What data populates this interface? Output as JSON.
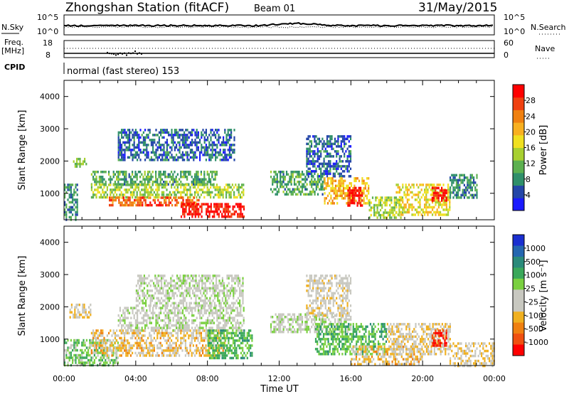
{
  "header": {
    "station": "Zhongshan Station (fitACF)",
    "beam": "Beam 01",
    "date": "31/May/2015"
  },
  "side_labels": {
    "nsky": "N.Sky",
    "nsearch": "N.Search",
    "freq_line1": "Freq.",
    "freq_line2": "[MHz]",
    "nave": "Nave",
    "cpid": "CPID",
    "noise_left_top": "10^5",
    "noise_left_bottom": "10^0",
    "noise_right_top": "10^5",
    "noise_right_bottom": "10^0",
    "freq_top": "18",
    "freq_bottom": "8",
    "nave_top": "60",
    "nave_bottom": "0",
    "cpid_text": "normal (fast stereo) 153"
  },
  "axis": {
    "x_title": "Time UT",
    "y_title": "Slant Range [km]",
    "x_ticks": [
      "00:00",
      "04:00",
      "08:00",
      "12:00",
      "16:00",
      "20:00",
      "00:00"
    ],
    "y_ticks": [
      "1000",
      "2000",
      "3000",
      "4000"
    ]
  },
  "colorbars": {
    "power": {
      "label": "Power [dB]",
      "ticks": [
        "4",
        "8",
        "12",
        "16",
        "20",
        "24",
        "28"
      ],
      "colors": [
        "#1a1aff",
        "#2446a8",
        "#2f8f6a",
        "#5cb050",
        "#a8d030",
        "#f0e020",
        "#f8b020",
        "#f08010",
        "#f04010",
        "#ff0000"
      ]
    },
    "velocity": {
      "label": "Velocity [m s⁻¹]",
      "ticks": [
        "1000",
        "500",
        "100",
        "25",
        "-25",
        "-100",
        "-500",
        "-1000"
      ],
      "colors": [
        "#1a2fd0",
        "#2466b0",
        "#2a8a7a",
        "#3aa85a",
        "#7ad040",
        "#c8c8c0",
        "#c8c8c0",
        "#f0b020",
        "#f08010",
        "#f05010",
        "#ff0000"
      ]
    }
  },
  "chart_data": [
    {
      "type": "heatmap",
      "title": "Power",
      "xlabel": "Time UT",
      "ylabel": "Slant Range [km]",
      "x_range_hours": [
        0,
        24
      ],
      "y_range_km": [
        180,
        4500
      ],
      "colorbar_label": "Power [dB]",
      "colorbar_range": [
        0,
        32
      ],
      "regions": [
        {
          "t_start": 0.0,
          "t_end": 0.7,
          "r_start": 200,
          "r_end": 1300,
          "value": 8
        },
        {
          "t_start": 0.5,
          "t_end": 1.2,
          "r_start": 1800,
          "r_end": 2100,
          "value": 12
        },
        {
          "t_start": 1.5,
          "t_end": 8.5,
          "r_start": 1300,
          "r_end": 1700,
          "value": 10
        },
        {
          "t_start": 1.5,
          "t_end": 10.0,
          "r_start": 900,
          "r_end": 1300,
          "value": 14
        },
        {
          "t_start": 2.5,
          "t_end": 7.5,
          "r_start": 600,
          "r_end": 900,
          "value": 26
        },
        {
          "t_start": 6.5,
          "t_end": 10.0,
          "r_start": 300,
          "r_end": 700,
          "value": 30
        },
        {
          "t_start": 3.0,
          "t_end": 9.5,
          "r_start": 2000,
          "r_end": 3000,
          "value": 6
        },
        {
          "t_start": 11.5,
          "t_end": 14.5,
          "r_start": 1000,
          "r_end": 1700,
          "value": 10
        },
        {
          "t_start": 13.5,
          "t_end": 16.0,
          "r_start": 1500,
          "r_end": 2800,
          "value": 6
        },
        {
          "t_start": 14.5,
          "t_end": 17.0,
          "r_start": 700,
          "r_end": 1500,
          "value": 20
        },
        {
          "t_start": 15.8,
          "t_end": 16.6,
          "r_start": 600,
          "r_end": 1200,
          "value": 30
        },
        {
          "t_start": 17.0,
          "t_end": 19.0,
          "r_start": 250,
          "r_end": 900,
          "value": 14
        },
        {
          "t_start": 18.5,
          "t_end": 21.5,
          "r_start": 300,
          "r_end": 1300,
          "value": 18
        },
        {
          "t_start": 20.5,
          "t_end": 21.3,
          "r_start": 800,
          "r_end": 1200,
          "value": 30
        },
        {
          "t_start": 21.5,
          "t_end": 23.0,
          "r_start": 900,
          "r_end": 1600,
          "value": 8
        }
      ]
    },
    {
      "type": "heatmap",
      "title": "Velocity",
      "xlabel": "Time UT",
      "ylabel": "Slant Range [km]",
      "x_range_hours": [
        0,
        24
      ],
      "y_range_km": [
        180,
        4500
      ],
      "colorbar_label": "Velocity [m s⁻¹]",
      "colorbar_range": [
        -1000,
        1000
      ],
      "regions": [
        {
          "t_start": 0.3,
          "t_end": 1.5,
          "r_start": 1700,
          "r_end": 2100,
          "value": -250
        },
        {
          "t_start": 0.0,
          "t_end": 3.0,
          "r_start": 200,
          "r_end": 1000,
          "value": 200
        },
        {
          "t_start": 1.5,
          "t_end": 9.0,
          "r_start": 500,
          "r_end": 1300,
          "value": -300
        },
        {
          "t_start": 3.0,
          "t_end": 10.0,
          "r_start": 1300,
          "r_end": 2000,
          "value": 0
        },
        {
          "t_start": 4.0,
          "t_end": 10.0,
          "r_start": 2000,
          "r_end": 3000,
          "value": 0
        },
        {
          "t_start": 8.0,
          "t_end": 10.5,
          "r_start": 400,
          "r_end": 1300,
          "value": 300
        },
        {
          "t_start": 11.5,
          "t_end": 16.0,
          "r_start": 1200,
          "r_end": 1800,
          "value": 0
        },
        {
          "t_start": 13.5,
          "t_end": 16.0,
          "r_start": 1700,
          "r_end": 3000,
          "value": -150
        },
        {
          "t_start": 14.0,
          "t_end": 18.0,
          "r_start": 500,
          "r_end": 1500,
          "value": 300
        },
        {
          "t_start": 16.0,
          "t_end": 20.0,
          "r_start": 200,
          "r_end": 800,
          "value": -300
        },
        {
          "t_start": 18.0,
          "t_end": 21.5,
          "r_start": 500,
          "r_end": 1500,
          "value": -200
        },
        {
          "t_start": 20.5,
          "t_end": 21.3,
          "r_start": 800,
          "r_end": 1300,
          "value": -800
        },
        {
          "t_start": 21.5,
          "t_end": 24.0,
          "r_start": 200,
          "r_end": 900,
          "value": -250
        }
      ]
    }
  ]
}
